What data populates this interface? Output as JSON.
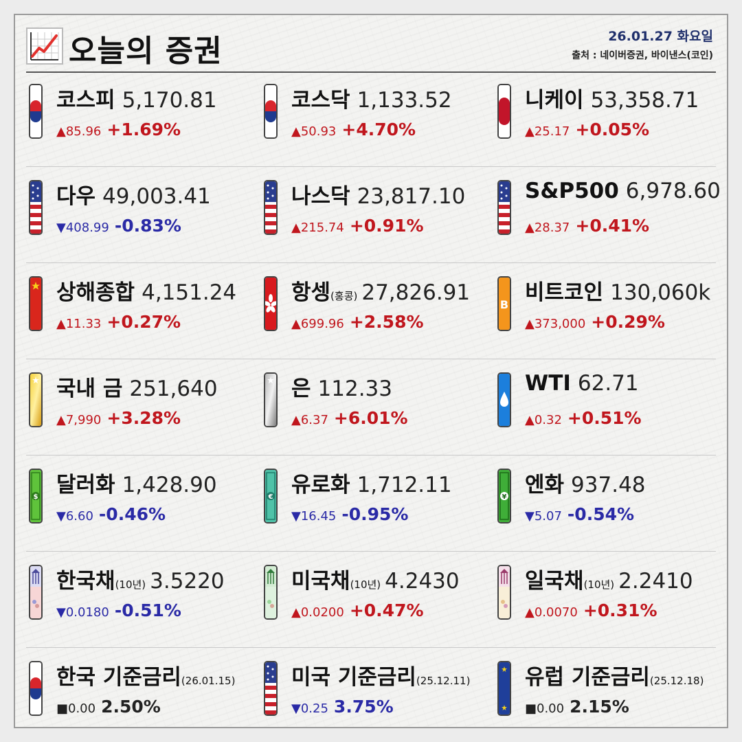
{
  "header": {
    "title": "오늘의 증권",
    "date": "26.01.27 화요일",
    "source": "출처 : 네이버증권, 바이낸스(코인)"
  },
  "items": [
    {
      "name": "코스피",
      "sub": "",
      "value": "5,170.81",
      "change": "▲85.96",
      "pct": "+1.69%",
      "dir": "up",
      "icon": "korea-flag-icon"
    },
    {
      "name": "코스닥",
      "sub": "",
      "value": "1,133.52",
      "change": "▲50.93",
      "pct": "+4.70%",
      "dir": "up",
      "icon": "korea-flag-icon"
    },
    {
      "name": "니케이",
      "sub": "",
      "value": "53,358.71",
      "change": "▲25.17",
      "pct": "+0.05%",
      "dir": "up",
      "icon": "japan-flag-icon"
    },
    {
      "name": "다우",
      "sub": "",
      "value": "49,003.41",
      "change": "▼408.99",
      "pct": "-0.83%",
      "dir": "down",
      "icon": "us-flag-icon"
    },
    {
      "name": "나스닥",
      "sub": "",
      "value": "23,817.10",
      "change": "▲215.74",
      "pct": "+0.91%",
      "dir": "up",
      "icon": "us-flag-icon"
    },
    {
      "name": "S&P500",
      "sub": "",
      "value": "6,978.60",
      "change": "▲28.37",
      "pct": "+0.41%",
      "dir": "up",
      "icon": "us-flag-icon"
    },
    {
      "name": "상해종합",
      "sub": "",
      "value": "4,151.24",
      "change": "▲11.33",
      "pct": "+0.27%",
      "dir": "up",
      "icon": "china-flag-icon"
    },
    {
      "name": "항셍",
      "sub": "(홍콩)",
      "value": "27,826.91",
      "change": "▲699.96",
      "pct": "+2.58%",
      "dir": "up",
      "icon": "hongkong-flag-icon"
    },
    {
      "name": "비트코인",
      "sub": "",
      "value": "130,060k",
      "change": "▲373,000",
      "pct": "+0.29%",
      "dir": "up",
      "icon": "bitcoin-icon"
    },
    {
      "name": "국내 금",
      "sub": "",
      "value": "251,640",
      "change": "▲7,990",
      "pct": "+3.28%",
      "dir": "up",
      "icon": "gold-bar-icon"
    },
    {
      "name": "은",
      "sub": "",
      "value": "112.33",
      "change": "▲6.37",
      "pct": "+6.01%",
      "dir": "up",
      "icon": "silver-bar-icon"
    },
    {
      "name": "WTI",
      "sub": "",
      "value": "62.71",
      "change": "▲0.32",
      "pct": "+0.51%",
      "dir": "up",
      "icon": "oil-drop-icon"
    },
    {
      "name": "달러화",
      "sub": "",
      "value": "1,428.90",
      "change": "▼6.60",
      "pct": "-0.46%",
      "dir": "down",
      "icon": "dollar-bill-icon"
    },
    {
      "name": "유로화",
      "sub": "",
      "value": "1,712.11",
      "change": "▼16.45",
      "pct": "-0.95%",
      "dir": "down",
      "icon": "euro-bill-icon"
    },
    {
      "name": "엔화",
      "sub": "",
      "value": "937.48",
      "change": "▼5.07",
      "pct": "-0.54%",
      "dir": "down",
      "icon": "yen-bill-icon"
    },
    {
      "name": "한국채",
      "sub": "(10년)",
      "value": "3.5220",
      "change": "▼0.0180",
      "pct": "-0.51%",
      "dir": "down",
      "icon": "korea-bond-icon"
    },
    {
      "name": "미국채",
      "sub": "(10년)",
      "value": "4.2430",
      "change": "▲0.0200",
      "pct": "+0.47%",
      "dir": "up",
      "icon": "us-bond-icon"
    },
    {
      "name": "일국채",
      "sub": "(10년)",
      "value": "2.2410",
      "change": "▲0.0070",
      "pct": "+0.31%",
      "dir": "up",
      "icon": "japan-bond-icon"
    },
    {
      "name": "한국 기준금리",
      "sub": "(26.01.15)",
      "value": "",
      "change": "■0.00",
      "pct": "2.50%",
      "dir": "flat",
      "icon": "korea-flag-icon"
    },
    {
      "name": "미국 기준금리",
      "sub": "(25.12.11)",
      "value": "",
      "change": "▼0.25",
      "pct": "3.75%",
      "dir": "down",
      "icon": "us-flag-icon"
    },
    {
      "name": "유럽 기준금리",
      "sub": "(25.12.18)",
      "value": "",
      "change": "■0.00",
      "pct": "2.15%",
      "dir": "flat",
      "icon": "eu-flag-icon"
    }
  ]
}
